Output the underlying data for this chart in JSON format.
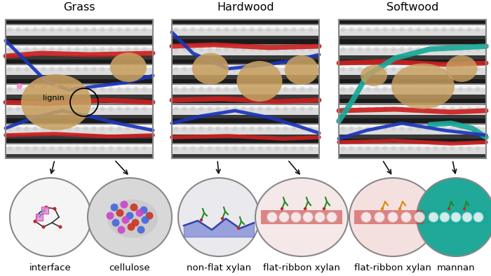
{
  "title_grass": "Grass",
  "title_hardwood": "Hardwood",
  "title_softwood": "Softwood",
  "label_interface": "interface",
  "label_cellulose": "cellulose",
  "label_nonflat": "non-flat xylan",
  "label_flatribbon": "flat-ribbon xylan",
  "label_mannan": "mannan",
  "label_lignin": "lignin",
  "fig_bg": "#ffffff",
  "title_fontsize": 11.5,
  "label_fontsize": 9.5,
  "arrow_color": "#111111",
  "ribbon_red": "#cc2020",
  "ribbon_blue": "#1a35bb",
  "ribbon_teal": "#18a898",
  "ribbon_pink": "#dd88cc",
  "lignin_tan": "#c8a060",
  "fiber_light": "#dcdcdc",
  "fiber_mid": "#b0b0b0",
  "fiber_dark": "#606060",
  "fiber_bg": "#383838",
  "panel_border": "#888888",
  "ellipse_edge": "#888888"
}
